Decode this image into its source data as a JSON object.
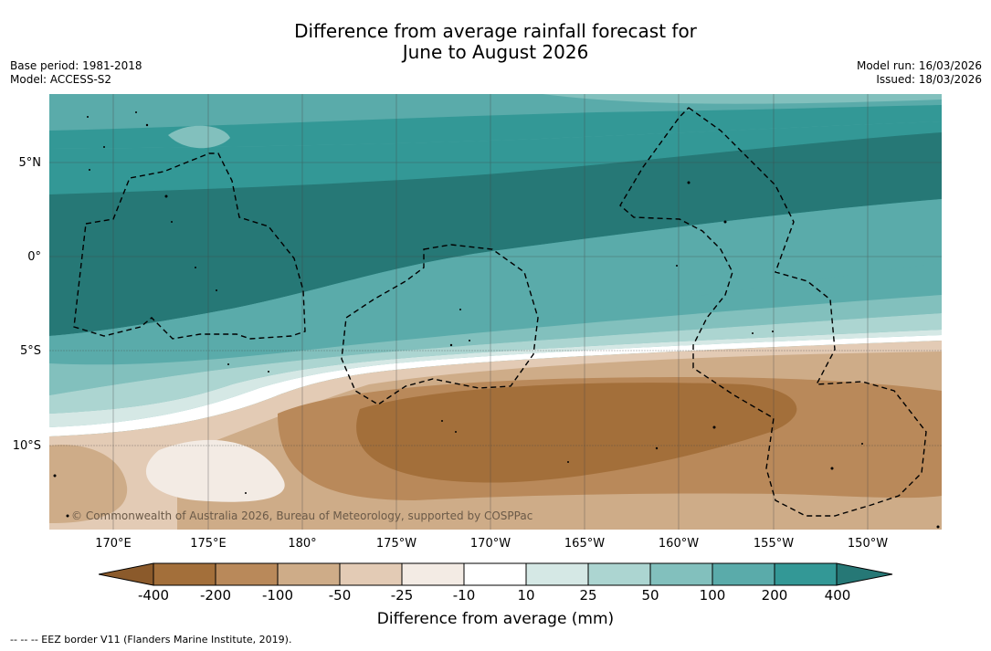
{
  "title": {
    "line1": "Difference from average rainfall forecast for",
    "line2": "June to August 2026"
  },
  "meta_left": {
    "base_period": "Base period: 1981-2018",
    "model": "Model: ACCESS-S2"
  },
  "meta_right": {
    "model_run": "Model run: 16/03/2026",
    "issued": "Issued: 18/03/2026"
  },
  "map": {
    "longitude_ticks": [
      "170°E",
      "175°E",
      "180°",
      "175°W",
      "170°W",
      "165°W",
      "160°W",
      "155°W",
      "150°W"
    ],
    "latitude_ticks": [
      "5°N",
      "0°",
      "5°S",
      "10°S"
    ],
    "copyright": "© Commonwealth of Australia 2026, Bureau of Meteorology, supported by COSPPac"
  },
  "colorbar": {
    "labels": [
      "-400",
      "-200",
      "-100",
      "-50",
      "-25",
      "-10",
      "10",
      "25",
      "50",
      "100",
      "200",
      "400"
    ],
    "colors": [
      "#a36f3a",
      "#b9895a",
      "#ceac88",
      "#e3cbb5",
      "#f3ebe4",
      "#ffffff",
      "#d5e8e5",
      "#acd5d1",
      "#82c0bd",
      "#5aabaa",
      "#339896",
      "#267876"
    ],
    "title": "Difference from average (mm)"
  },
  "legend": {
    "eez": "-- -- -- EEZ border V11 (Flanders Marine Institute, 2019)."
  },
  "icons": [
    "colorbar-left-arrow-icon",
    "colorbar-right-arrow-icon"
  ]
}
